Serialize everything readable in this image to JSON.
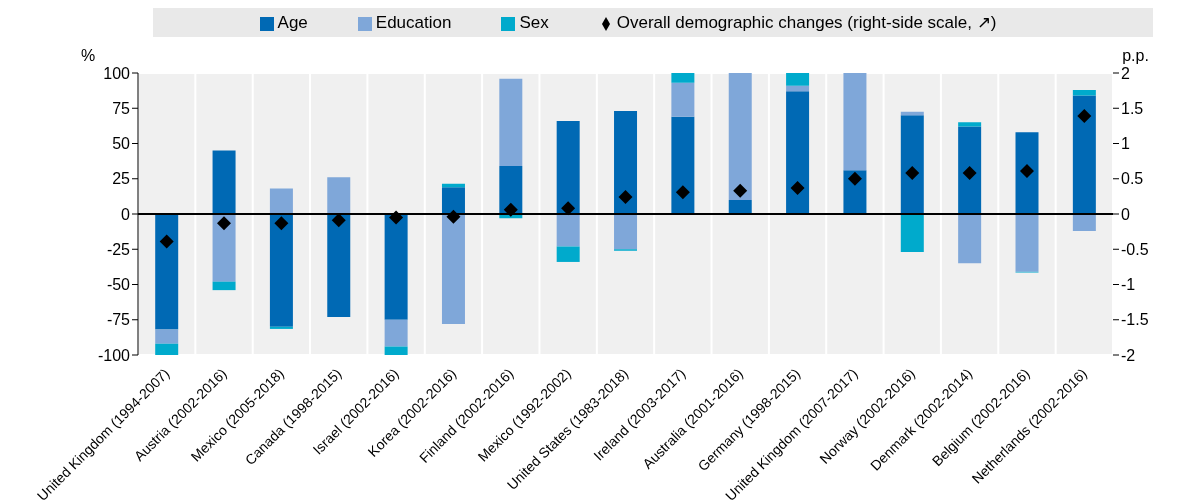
{
  "chart_data": {
    "type": "bar",
    "stacked": true,
    "categories": [
      "United Kingdom (1994-2007)",
      "Austria (2002-2016)",
      "Mexico (2005-2018)",
      "Canada (1998-2015)",
      "Israel (2002-2016)",
      "Korea (2002-2016)",
      "Finland (2002-2016)",
      "Mexico (1992-2002)",
      "United States (1983-2018)",
      "Ireland (2003-2017)",
      "Australia (2001-2016)",
      "Germany (1998-2015)",
      "United Kingdom (2007-2017)",
      "Norway (2002-2016)",
      "Denmark (2002-2014)",
      "Belgium (2002-2016)",
      "Netherlands (2002-2016)"
    ],
    "series": [
      {
        "name": "Age",
        "color": "#0069b4",
        "values": [
          -82,
          45,
          -80,
          -73,
          -75,
          19,
          34,
          66,
          73,
          69,
          10,
          87,
          31,
          70,
          62,
          58,
          84
        ]
      },
      {
        "name": "Education",
        "color": "#7fa7d9",
        "values": [
          -10,
          -48,
          18,
          26,
          -19,
          -78,
          62,
          -23,
          -25,
          24,
          90,
          4,
          69,
          2.5,
          -35,
          -41,
          -12
        ]
      },
      {
        "name": "Sex",
        "color": "#00aacc",
        "values": [
          -8,
          -6,
          -1.5,
          0,
          -6,
          2.5,
          -3,
          -11,
          -1,
          7,
          0,
          9,
          0,
          -27,
          3,
          -0.5,
          4
        ]
      },
      {
        "name": "Overall demographic changes (right-side scale, ↗)",
        "type": "scatter",
        "axis": "y2",
        "color": "#000000",
        "marker": "diamond",
        "values": [
          -0.39,
          -0.13,
          -0.13,
          -0.09,
          -0.05,
          -0.04,
          0.06,
          0.08,
          0.24,
          0.31,
          0.33,
          0.37,
          0.5,
          0.58,
          0.58,
          0.61,
          1.39
        ]
      }
    ],
    "ylabel": "%",
    "y2label": "p.p.",
    "ylim": [
      -100,
      100
    ],
    "yticks": [
      -100,
      -75,
      -50,
      -25,
      0,
      25,
      50,
      75,
      100
    ],
    "y2lim": [
      -2,
      2
    ],
    "y2ticks": [
      -2,
      -1.5,
      -1,
      -0.5,
      0,
      0.5,
      1,
      1.5,
      2
    ],
    "grid": true,
    "legend": "top"
  }
}
